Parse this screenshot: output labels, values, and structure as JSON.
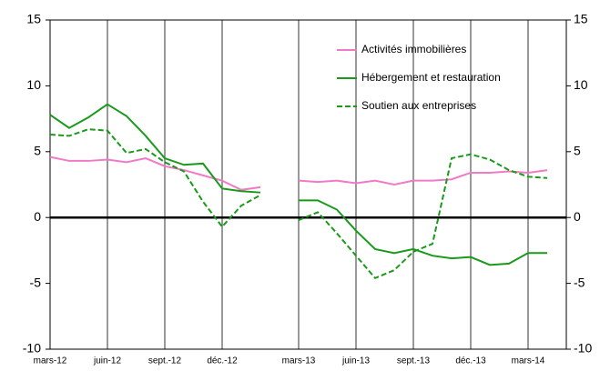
{
  "chart_data": {
    "type": "line",
    "categories": [
      "mars-12",
      null,
      null,
      "juin-12",
      null,
      null,
      "sept.-12",
      null,
      null,
      "déc.-12",
      null,
      null,
      null,
      "mars-13",
      null,
      null,
      "juin-13",
      null,
      null,
      "sept.-13",
      null,
      null,
      "déc.-13",
      null,
      null,
      "mars-14",
      null
    ],
    "series": [
      {
        "name": "Activités immobilières",
        "color": "#f07ac8",
        "dash": false,
        "values": [
          4.6,
          4.3,
          4.3,
          4.4,
          4.2,
          4.5,
          3.9,
          3.6,
          3.2,
          2.8,
          2.1,
          2.3,
          null,
          2.8,
          2.7,
          2.8,
          2.6,
          2.8,
          2.5,
          2.8,
          2.8,
          2.9,
          3.4,
          3.4,
          3.5,
          3.4,
          3.6
        ]
      },
      {
        "name": "Hébergement et restauration",
        "color": "#1a9a1a",
        "dash": false,
        "values": [
          7.8,
          6.8,
          7.6,
          8.6,
          7.7,
          6.2,
          4.5,
          4.0,
          4.1,
          2.2,
          2.0,
          1.9,
          null,
          1.3,
          1.3,
          0.6,
          -1.0,
          -2.4,
          -2.7,
          -2.4,
          -2.9,
          -3.1,
          -3.0,
          -3.6,
          -3.5,
          -2.7,
          -2.7
        ]
      },
      {
        "name": "Soutien aux entreprises",
        "color": "#1a9a1a",
        "dash": true,
        "values": [
          6.3,
          6.2,
          6.7,
          6.6,
          4.9,
          5.2,
          4.2,
          3.5,
          1.2,
          -0.7,
          0.9,
          1.7,
          null,
          -0.2,
          0.4,
          -1.2,
          -2.9,
          -4.6,
          -4.0,
          -2.6,
          -2.0,
          4.5,
          4.8,
          4.4,
          3.6,
          3.1,
          3.0
        ]
      }
    ],
    "ylim": [
      -10,
      15
    ],
    "yticks": [
      -10,
      -5,
      0,
      5,
      10,
      15
    ],
    "y2lim": [
      -10,
      15
    ],
    "y2ticks": [
      -10,
      -5,
      0,
      5,
      10,
      15
    ],
    "grid": "x"
  }
}
